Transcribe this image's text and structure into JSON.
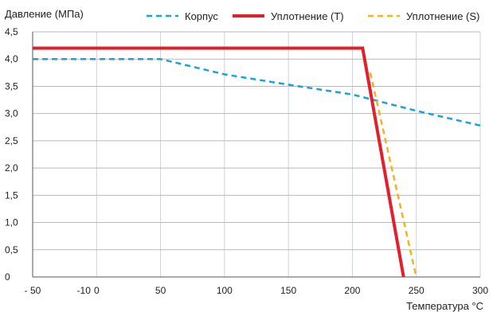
{
  "chart_data": {
    "type": "line",
    "ylabel": "Давление (МПа)",
    "xlabel": "Температура °С",
    "xlim": [
      -50,
      300
    ],
    "ylim": [
      0,
      4.5
    ],
    "x_ticks": [
      -50,
      -10,
      0,
      50,
      100,
      150,
      200,
      250,
      300
    ],
    "x_tick_labels": [
      "- 50",
      "-10",
      "0",
      "50",
      "100",
      "150",
      "200",
      "250",
      "300"
    ],
    "y_ticks": [
      0,
      0.5,
      1.0,
      1.5,
      2.0,
      2.5,
      3.0,
      3.5,
      4.0,
      4.5
    ],
    "y_tick_labels": [
      "0",
      "0,5",
      "1,0",
      "1,5",
      "2,0",
      "2,5",
      "3,0",
      "3,5",
      "4,0",
      "4,5"
    ],
    "vgrid_x": [
      -50,
      0,
      50,
      100,
      150,
      200,
      250,
      300
    ],
    "grid": true,
    "legend_position": "top-right",
    "series": [
      {
        "name": "Корпус",
        "color": "#1aa3d9",
        "style": "dashed",
        "points": [
          [
            -50,
            4.0
          ],
          [
            50,
            4.0
          ],
          [
            100,
            3.72
          ],
          [
            150,
            3.53
          ],
          [
            200,
            3.35
          ],
          [
            250,
            3.05
          ],
          [
            300,
            2.78
          ]
        ]
      },
      {
        "name": "Уплотнение (T)",
        "color": "#e0202a",
        "style": "solid",
        "points": [
          [
            -50,
            4.2
          ],
          [
            208,
            4.2
          ],
          [
            240,
            0
          ]
        ]
      },
      {
        "name": "Уплотнение (S)",
        "color": "#f5b21f",
        "style": "dashed",
        "points": [
          [
            214,
            3.75
          ],
          [
            250,
            0
          ]
        ]
      }
    ]
  }
}
